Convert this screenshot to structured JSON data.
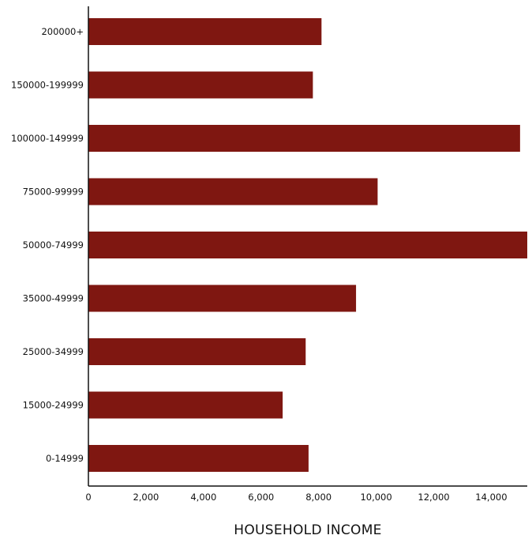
{
  "chart_data": {
    "type": "bar",
    "orientation": "horizontal",
    "categories": [
      "200000+",
      "150000-199999",
      "100000-149999",
      "75000-99999",
      "50000-74999",
      "35000-49999",
      "25000-34999",
      "15000-24999",
      "0-14999"
    ],
    "values": [
      8100,
      7800,
      15000,
      10050,
      15250,
      9300,
      7550,
      6750,
      7650
    ],
    "xlabel": "HOUSEHOLD INCOME",
    "ylabel": "",
    "xlim": [
      0,
      15250
    ],
    "xticks": [
      0,
      2000,
      4000,
      6000,
      8000,
      10000,
      12000,
      14000
    ],
    "xtick_labels": [
      "0",
      "2,000",
      "4,000",
      "6,000",
      "8,000",
      "10,000",
      "12,000",
      "14,000"
    ],
    "bar_color": "#7f1711",
    "grid": false,
    "legend": "none"
  }
}
